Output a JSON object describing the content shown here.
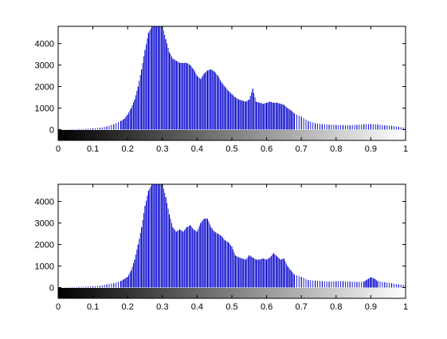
{
  "figure": {
    "background": "#ffffff",
    "bar_color": "#0000cc",
    "axis_color": "#000000"
  },
  "chart_data": [
    {
      "type": "bar",
      "title": "",
      "xlabel": "",
      "ylabel": "",
      "xlim": [
        0,
        1
      ],
      "ylim": [
        -500,
        4800
      ],
      "grid": false,
      "legend": "none",
      "colorbar": {
        "type": "grayscale",
        "range": [
          0,
          1
        ],
        "from": "#000000",
        "to": "#ffffff"
      },
      "x_ticks": [
        "0",
        "0.1",
        "0.2",
        "0.3",
        "0.4",
        "0.5",
        "0.6",
        "0.7",
        "0.8",
        "0.9",
        "1"
      ],
      "y_ticks": [
        "0",
        "1000",
        "2000",
        "3000",
        "4000"
      ],
      "x": [
        0.0,
        0.02,
        0.04,
        0.06,
        0.08,
        0.1,
        0.12,
        0.14,
        0.16,
        0.18,
        0.19,
        0.2,
        0.21,
        0.22,
        0.23,
        0.24,
        0.25,
        0.26,
        0.27,
        0.28,
        0.29,
        0.3,
        0.31,
        0.32,
        0.33,
        0.34,
        0.35,
        0.36,
        0.37,
        0.38,
        0.39,
        0.4,
        0.41,
        0.42,
        0.43,
        0.44,
        0.45,
        0.46,
        0.47,
        0.48,
        0.49,
        0.5,
        0.51,
        0.52,
        0.53,
        0.54,
        0.55,
        0.56,
        0.57,
        0.58,
        0.59,
        0.6,
        0.61,
        0.62,
        0.63,
        0.64,
        0.65,
        0.66,
        0.67,
        0.68,
        0.7,
        0.72,
        0.74,
        0.76,
        0.78,
        0.8,
        0.82,
        0.84,
        0.86,
        0.88,
        0.9,
        0.92,
        0.94,
        0.96,
        0.98,
        1.0
      ],
      "values": [
        0,
        10,
        20,
        30,
        40,
        60,
        80,
        150,
        250,
        400,
        500,
        700,
        1000,
        1400,
        2000,
        2800,
        3700,
        4500,
        4800,
        4800,
        4800,
        4800,
        4200,
        3600,
        3300,
        3200,
        3100,
        3100,
        3100,
        3000,
        2800,
        2500,
        2350,
        2600,
        2750,
        2800,
        2700,
        2500,
        2200,
        2000,
        1800,
        1650,
        1500,
        1400,
        1350,
        1300,
        1400,
        1900,
        1300,
        1250,
        1200,
        1250,
        1300,
        1250,
        1250,
        1200,
        1150,
        1000,
        900,
        750,
        600,
        400,
        300,
        250,
        230,
        220,
        210,
        200,
        220,
        250,
        260,
        240,
        200,
        180,
        130,
        80
      ]
    },
    {
      "type": "bar",
      "title": "",
      "xlabel": "",
      "ylabel": "",
      "xlim": [
        0,
        1
      ],
      "ylim": [
        -500,
        4800
      ],
      "grid": false,
      "legend": "none",
      "colorbar": {
        "type": "grayscale",
        "range": [
          0,
          1
        ],
        "from": "#000000",
        "to": "#ffffff"
      },
      "x_ticks": [
        "0",
        "0.1",
        "0.2",
        "0.3",
        "0.4",
        "0.5",
        "0.6",
        "0.7",
        "0.8",
        "0.9",
        "1"
      ],
      "y_ticks": [
        "0",
        "1000",
        "2000",
        "3000",
        "4000"
      ],
      "x": [
        0.0,
        0.02,
        0.04,
        0.06,
        0.08,
        0.1,
        0.12,
        0.14,
        0.16,
        0.18,
        0.19,
        0.2,
        0.21,
        0.22,
        0.23,
        0.24,
        0.25,
        0.26,
        0.27,
        0.28,
        0.29,
        0.3,
        0.31,
        0.32,
        0.33,
        0.34,
        0.35,
        0.36,
        0.37,
        0.38,
        0.39,
        0.4,
        0.41,
        0.42,
        0.43,
        0.44,
        0.45,
        0.46,
        0.47,
        0.48,
        0.49,
        0.5,
        0.51,
        0.52,
        0.53,
        0.54,
        0.55,
        0.56,
        0.57,
        0.58,
        0.59,
        0.6,
        0.61,
        0.62,
        0.63,
        0.64,
        0.65,
        0.66,
        0.67,
        0.68,
        0.7,
        0.72,
        0.74,
        0.76,
        0.78,
        0.8,
        0.82,
        0.84,
        0.86,
        0.88,
        0.89,
        0.9,
        0.91,
        0.92,
        0.94,
        0.96,
        0.98,
        1.0
      ],
      "values": [
        0,
        10,
        20,
        30,
        40,
        60,
        80,
        150,
        200,
        300,
        400,
        500,
        800,
        1300,
        2000,
        2800,
        3800,
        4500,
        4800,
        4800,
        4800,
        4800,
        4200,
        3400,
        2800,
        2600,
        2700,
        2600,
        2800,
        2900,
        2700,
        2600,
        3000,
        3200,
        3200,
        2800,
        2600,
        2500,
        2400,
        2200,
        2100,
        1900,
        1500,
        1400,
        1350,
        1300,
        1500,
        1400,
        1300,
        1300,
        1350,
        1300,
        1400,
        1600,
        1450,
        1300,
        1350,
        1000,
        800,
        600,
        500,
        350,
        320,
        300,
        280,
        300,
        300,
        280,
        260,
        280,
        380,
        480,
        420,
        300,
        250,
        200,
        150,
        120
      ]
    }
  ]
}
